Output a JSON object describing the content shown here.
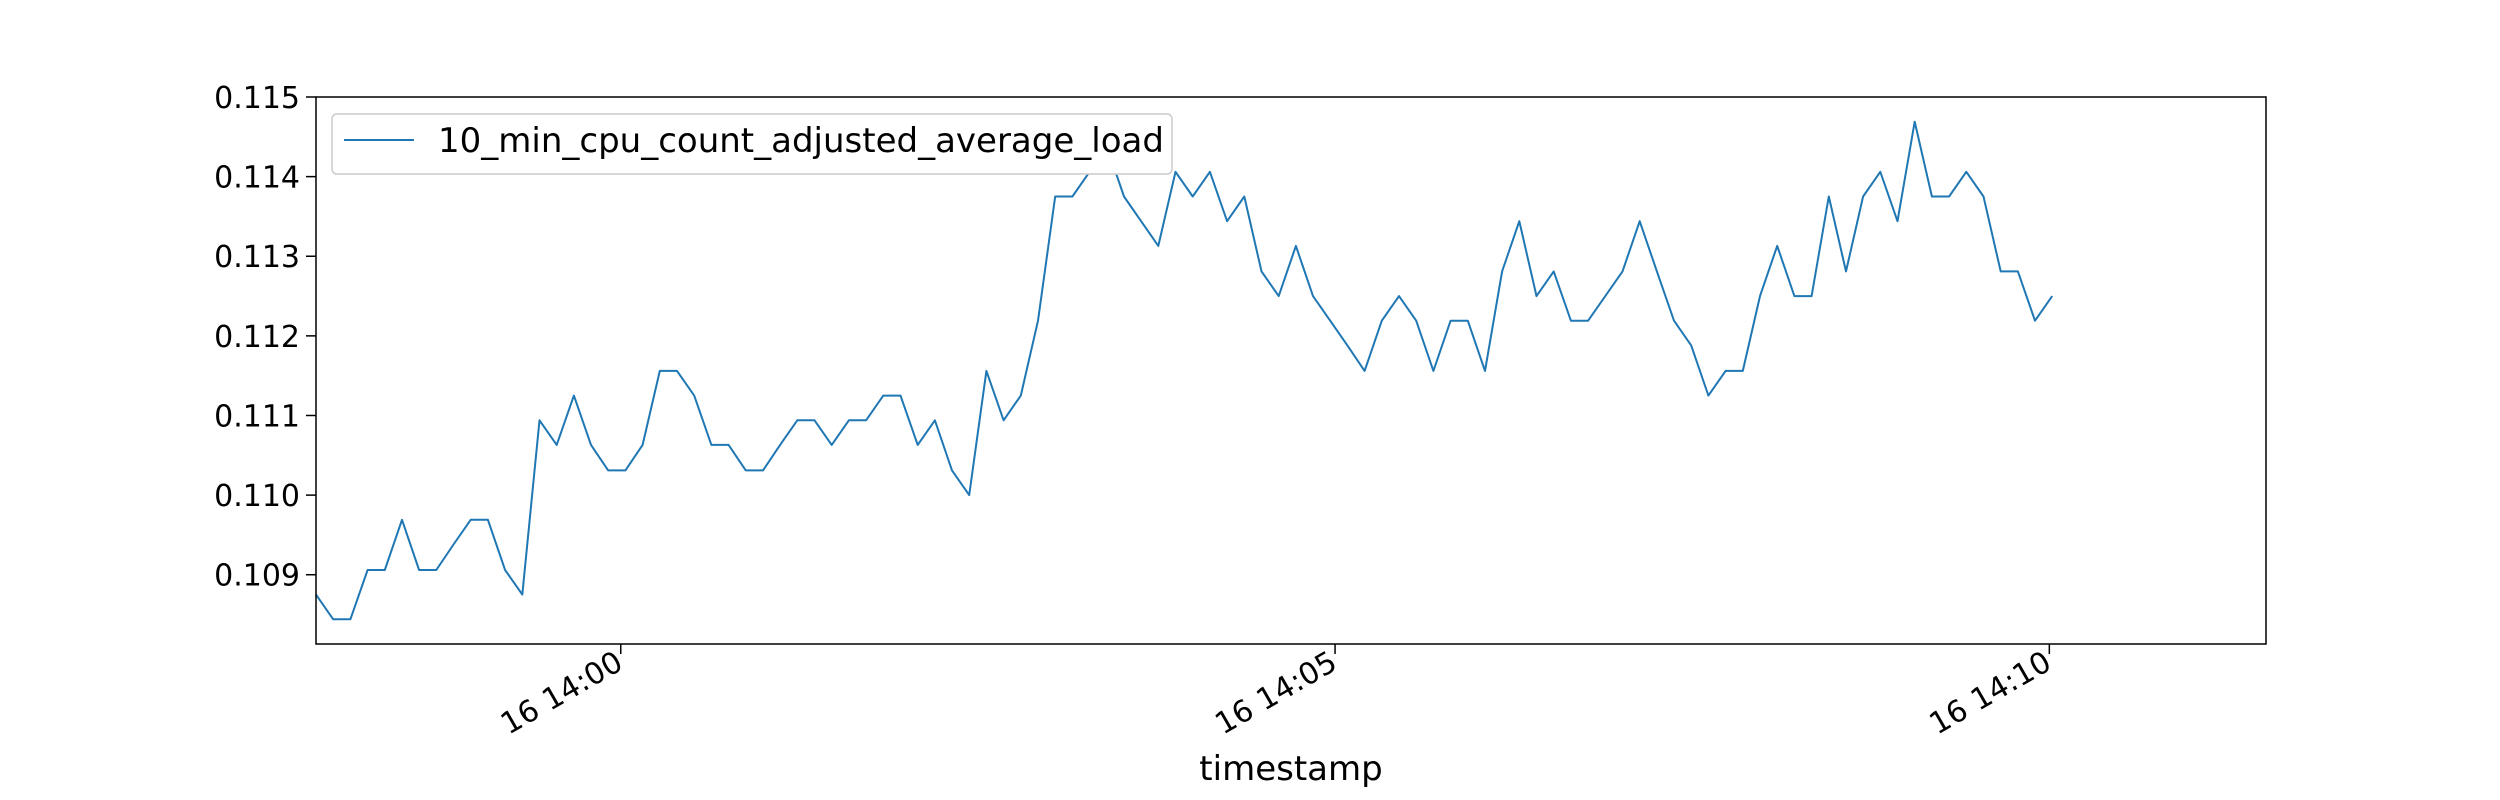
{
  "chart_data": {
    "type": "line",
    "title": "",
    "xlabel": "timestamp",
    "ylabel": "",
    "ylim": [
      0.10813,
      0.115
    ],
    "xlim": [
      "2000-01-16 13:57:52",
      "2000-01-16 14:11:31"
    ],
    "x_ticks": [
      {
        "value": "2000-01-16 14:00:00",
        "label": "16 14:00"
      },
      {
        "value": "2000-01-16 14:05:00",
        "label": "16 14:05"
      },
      {
        "value": "2000-01-16 14:10:00",
        "label": "16 14:10"
      }
    ],
    "y_ticks": [
      0.109,
      0.11,
      0.111,
      0.112,
      0.113,
      0.114,
      0.115
    ],
    "y_tick_format": 3,
    "grid": false,
    "legend_position": "upper-left",
    "x_start": "2000-01-16 13:57:52",
    "x_step_seconds": 7.22,
    "series": [
      {
        "name": "10_min_cpu_count_adjusted_average_load",
        "color": "#1f77b4",
        "values": [
          0.10875,
          0.10844,
          0.10844,
          0.10906,
          0.10906,
          0.10969,
          0.10906,
          0.10906,
          0.10938,
          0.10969,
          0.10969,
          0.10906,
          0.10875,
          0.11094,
          0.11063,
          0.11125,
          0.11063,
          0.11031,
          0.11031,
          0.11063,
          0.11156,
          0.11156,
          0.11125,
          0.11063,
          0.11063,
          0.11031,
          0.11031,
          0.11063,
          0.11094,
          0.11094,
          0.11063,
          0.11094,
          0.11094,
          0.11125,
          0.11125,
          0.11063,
          0.11094,
          0.11031,
          0.11,
          0.11156,
          0.11094,
          0.11125,
          0.11219,
          0.11375,
          0.11375,
          0.11406,
          0.11438,
          0.11375,
          0.11344,
          0.11313,
          0.11406,
          0.11375,
          0.11406,
          0.11344,
          0.11375,
          0.11281,
          0.1125,
          0.11313,
          0.1125,
          0.11219,
          0.11188,
          0.11156,
          0.11219,
          0.1125,
          0.11219,
          0.11156,
          0.11219,
          0.11219,
          0.11156,
          0.11281,
          0.11344,
          0.1125,
          0.11281,
          0.11219,
          0.11219,
          0.1125,
          0.11281,
          0.11344,
          0.11281,
          0.11219,
          0.11188,
          0.11125,
          0.11156,
          0.11156,
          0.1125,
          0.11313,
          0.1125,
          0.1125,
          0.11375,
          0.11281,
          0.11375,
          0.11406,
          0.11344,
          0.11469,
          0.11375,
          0.11375,
          0.11406,
          0.11375,
          0.11281,
          0.11281,
          0.11219,
          0.1125
        ]
      }
    ]
  }
}
